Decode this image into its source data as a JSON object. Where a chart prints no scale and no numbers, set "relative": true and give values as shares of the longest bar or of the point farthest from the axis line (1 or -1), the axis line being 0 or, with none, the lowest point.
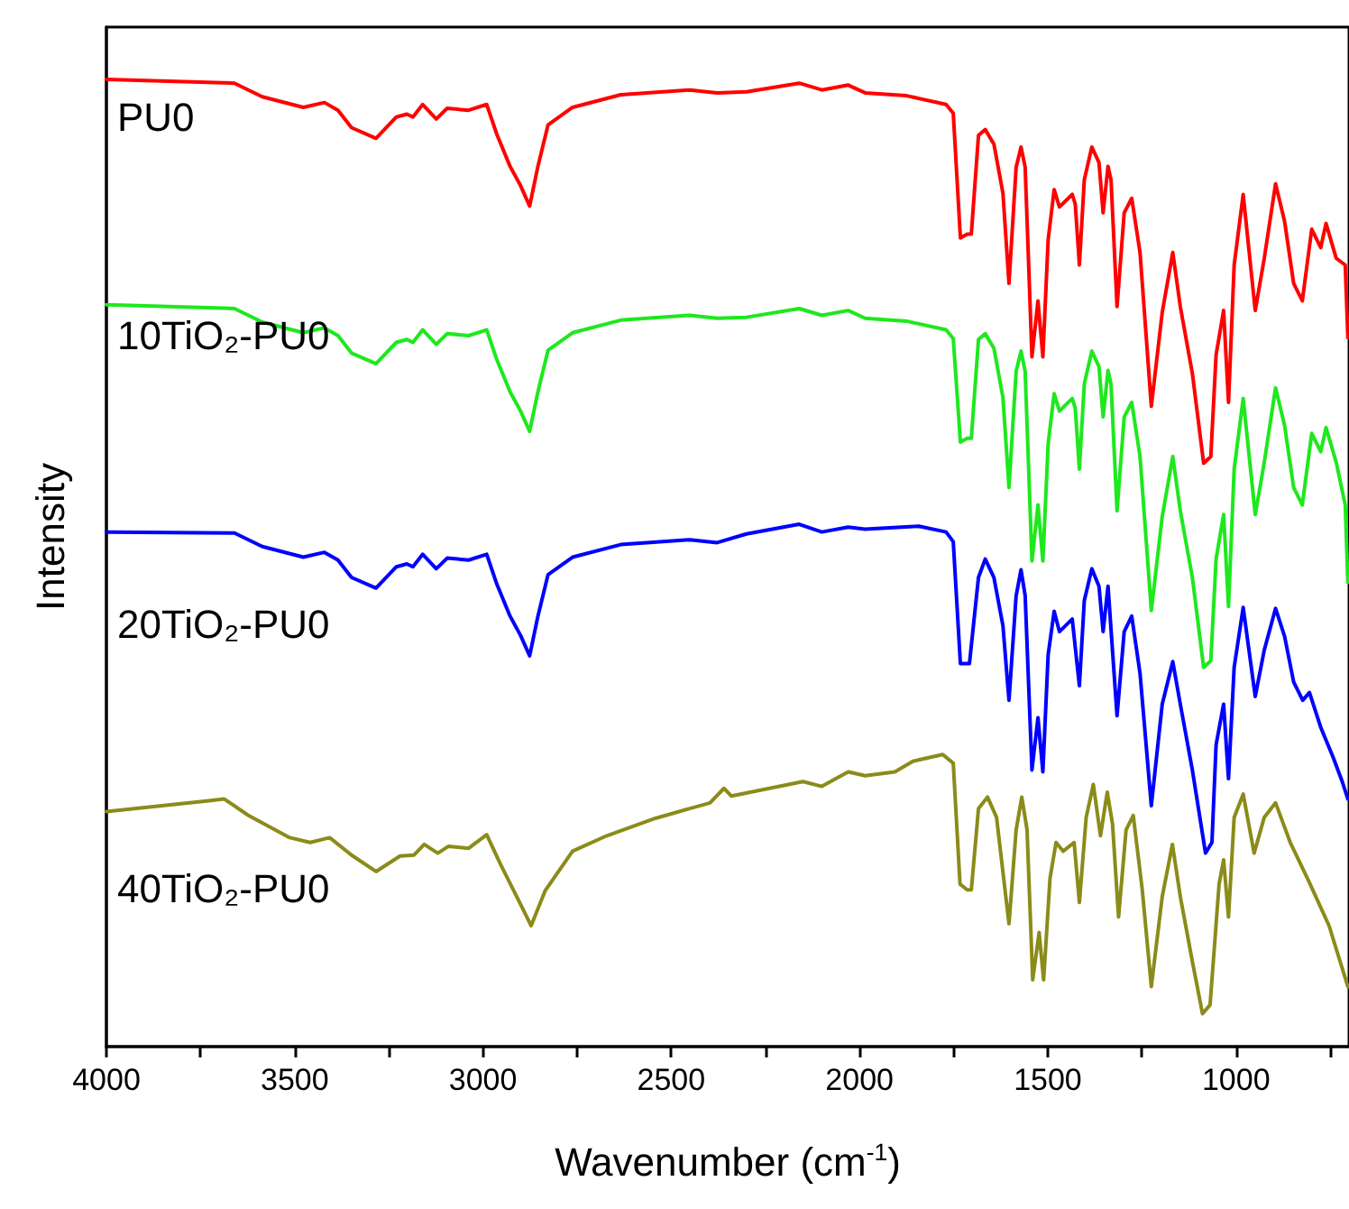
{
  "chart_data": {
    "type": "line",
    "xlabel": "Wavenumber (cm$^{-1}$)",
    "ylabel": "Intensity",
    "relative": true,
    "marker": "none",
    "line_style": "solid",
    "xlim": [
      4000,
      700
    ],
    "xticks": [
      4000,
      {
        "value": 3750,
        "label": null
      },
      3500,
      {
        "value": 3250,
        "label": null
      },
      3000,
      {
        "value": 2750,
        "label": null
      },
      2500,
      {
        "value": 2250,
        "label": null
      },
      2000,
      {
        "value": 1750,
        "label": null
      },
      1500,
      {
        "value": 1250,
        "label": null
      },
      1000,
      {
        "value": 750,
        "label": null
      }
    ],
    "series": [
      {
        "name": "PU0",
        "color": "#ff0000",
        "x": [
          4000,
          3660,
          3586,
          3477,
          3421,
          3385,
          3349,
          3284,
          3230,
          3202,
          3186,
          3160,
          3124,
          3095,
          3038,
          2990,
          2963,
          2928,
          2900,
          2876,
          2854,
          2827,
          2762,
          2634,
          2451,
          2378,
          2300,
          2160,
          2100,
          2030,
          1985,
          1875,
          1770,
          1751,
          1732,
          1714,
          1703,
          1684,
          1666,
          1643,
          1619,
          1603,
          1584,
          1571,
          1560,
          1542,
          1526,
          1513,
          1499,
          1483,
          1469,
          1435,
          1427,
          1416,
          1403,
          1383,
          1364,
          1353,
          1340,
          1332,
          1316,
          1297,
          1277,
          1255,
          1225,
          1196,
          1168,
          1148,
          1116,
          1086,
          1067,
          1053,
          1033,
          1020,
          1005,
          981,
          949,
          925,
          895,
          871,
          847,
          824,
          799,
          775,
          761,
          734,
          710,
          703
        ],
        "values": [
          1.0,
          0.996,
          0.982,
          0.971,
          0.976,
          0.968,
          0.95,
          0.939,
          0.961,
          0.964,
          0.961,
          0.974,
          0.959,
          0.97,
          0.968,
          0.974,
          0.943,
          0.91,
          0.89,
          0.869,
          0.91,
          0.953,
          0.971,
          0.984,
          0.989,
          0.986,
          0.987,
          0.996,
          0.989,
          0.994,
          0.986,
          0.983,
          0.974,
          0.965,
          0.836,
          0.84,
          0.84,
          0.942,
          0.948,
          0.933,
          0.882,
          0.789,
          0.909,
          0.93,
          0.909,
          0.713,
          0.771,
          0.713,
          0.834,
          0.886,
          0.868,
          0.881,
          0.871,
          0.808,
          0.896,
          0.93,
          0.914,
          0.862,
          0.91,
          0.896,
          0.765,
          0.862,
          0.877,
          0.821,
          0.662,
          0.759,
          0.821,
          0.765,
          0.696,
          0.603,
          0.61,
          0.715,
          0.761,
          0.666,
          0.808,
          0.881,
          0.761,
          0.815,
          0.892,
          0.853,
          0.789,
          0.771,
          0.845,
          0.826,
          0.851,
          0.815,
          0.808,
          0.733
        ]
      },
      {
        "name": "10TiO₂-PU0",
        "color": "#1ee81e",
        "x": [
          4000,
          3660,
          3586,
          3477,
          3421,
          3385,
          3349,
          3284,
          3230,
          3202,
          3186,
          3160,
          3124,
          3095,
          3038,
          2990,
          2963,
          2928,
          2900,
          2876,
          2854,
          2827,
          2762,
          2634,
          2451,
          2378,
          2300,
          2160,
          2100,
          2030,
          1985,
          1875,
          1770,
          1751,
          1732,
          1714,
          1703,
          1684,
          1666,
          1643,
          1619,
          1603,
          1584,
          1571,
          1560,
          1542,
          1526,
          1513,
          1499,
          1483,
          1469,
          1435,
          1427,
          1416,
          1403,
          1383,
          1364,
          1353,
          1340,
          1332,
          1316,
          1297,
          1277,
          1255,
          1225,
          1196,
          1168,
          1148,
          1116,
          1086,
          1067,
          1053,
          1033,
          1020,
          1005,
          981,
          949,
          925,
          895,
          871,
          847,
          824,
          799,
          775,
          761,
          734,
          710,
          703
        ],
        "values": [
          0.767,
          0.763,
          0.749,
          0.738,
          0.743,
          0.735,
          0.717,
          0.706,
          0.728,
          0.731,
          0.728,
          0.741,
          0.726,
          0.737,
          0.735,
          0.741,
          0.71,
          0.677,
          0.657,
          0.636,
          0.677,
          0.72,
          0.738,
          0.751,
          0.756,
          0.753,
          0.754,
          0.763,
          0.756,
          0.761,
          0.753,
          0.75,
          0.741,
          0.732,
          0.625,
          0.629,
          0.629,
          0.731,
          0.737,
          0.722,
          0.671,
          0.578,
          0.698,
          0.719,
          0.698,
          0.502,
          0.56,
          0.502,
          0.623,
          0.675,
          0.657,
          0.67,
          0.66,
          0.597,
          0.685,
          0.719,
          0.703,
          0.651,
          0.699,
          0.685,
          0.554,
          0.651,
          0.666,
          0.61,
          0.451,
          0.548,
          0.61,
          0.554,
          0.485,
          0.392,
          0.399,
          0.504,
          0.55,
          0.455,
          0.597,
          0.67,
          0.55,
          0.604,
          0.681,
          0.642,
          0.578,
          0.56,
          0.634,
          0.615,
          0.64,
          0.604,
          0.56,
          0.48
        ]
      },
      {
        "name": "20TiO₂-PU0",
        "color": "#0000ff",
        "x": [
          4000,
          3660,
          3586,
          3477,
          3421,
          3385,
          3349,
          3284,
          3230,
          3202,
          3186,
          3160,
          3124,
          3095,
          3038,
          2990,
          2963,
          2928,
          2900,
          2876,
          2854,
          2827,
          2762,
          2634,
          2451,
          2378,
          2300,
          2160,
          2100,
          2030,
          1985,
          1842,
          1770,
          1751,
          1732,
          1708,
          1684,
          1666,
          1643,
          1619,
          1603,
          1584,
          1571,
          1560,
          1542,
          1526,
          1513,
          1499,
          1483,
          1469,
          1435,
          1416,
          1403,
          1383,
          1364,
          1353,
          1340,
          1316,
          1297,
          1277,
          1255,
          1225,
          1196,
          1168,
          1148,
          1116,
          1081,
          1064,
          1053,
          1033,
          1020,
          1005,
          981,
          949,
          925,
          895,
          871,
          847,
          823,
          805,
          775,
          742,
          718,
          703
        ],
        "values": [
          0.532,
          0.531,
          0.517,
          0.506,
          0.511,
          0.503,
          0.485,
          0.474,
          0.496,
          0.499,
          0.496,
          0.509,
          0.494,
          0.505,
          0.503,
          0.509,
          0.478,
          0.445,
          0.425,
          0.404,
          0.445,
          0.488,
          0.506,
          0.519,
          0.524,
          0.521,
          0.53,
          0.54,
          0.532,
          0.537,
          0.535,
          0.538,
          0.532,
          0.522,
          0.396,
          0.396,
          0.485,
          0.504,
          0.485,
          0.435,
          0.358,
          0.466,
          0.493,
          0.466,
          0.286,
          0.34,
          0.284,
          0.405,
          0.45,
          0.429,
          0.442,
          0.373,
          0.461,
          0.494,
          0.476,
          0.429,
          0.476,
          0.342,
          0.429,
          0.445,
          0.386,
          0.249,
          0.354,
          0.398,
          0.354,
          0.286,
          0.2,
          0.211,
          0.312,
          0.354,
          0.277,
          0.392,
          0.454,
          0.362,
          0.41,
          0.453,
          0.424,
          0.377,
          0.358,
          0.366,
          0.33,
          0.299,
          0.274,
          0.256
        ]
      },
      {
        "name": "40TiO₂-PU0",
        "color": "#8b8b1a",
        "x": [
          4000,
          3733,
          3687,
          3623,
          3513,
          3459,
          3407,
          3349,
          3284,
          3220,
          3183,
          3156,
          3120,
          3092,
          3038,
          2990,
          2954,
          2909,
          2872,
          2835,
          2762,
          2671,
          2542,
          2397,
          2360,
          2340,
          2150,
          2100,
          2030,
          1985,
          1906,
          1858,
          1779,
          1751,
          1733,
          1714,
          1703,
          1684,
          1660,
          1636,
          1603,
          1584,
          1569,
          1555,
          1540,
          1523,
          1511,
          1494,
          1478,
          1459,
          1430,
          1416,
          1398,
          1379,
          1360,
          1342,
          1328,
          1312,
          1292,
          1273,
          1249,
          1225,
          1196,
          1169,
          1148,
          1116,
          1089,
          1069,
          1045,
          1033,
          1020,
          1005,
          981,
          952,
          925,
          895,
          856,
          808,
          753,
          703
        ],
        "values": [
          0.243,
          0.254,
          0.256,
          0.239,
          0.216,
          0.211,
          0.216,
          0.198,
          0.181,
          0.197,
          0.198,
          0.209,
          0.2,
          0.207,
          0.205,
          0.219,
          0.189,
          0.154,
          0.125,
          0.161,
          0.202,
          0.218,
          0.236,
          0.252,
          0.267,
          0.259,
          0.274,
          0.269,
          0.284,
          0.28,
          0.284,
          0.295,
          0.302,
          0.293,
          0.168,
          0.162,
          0.162,
          0.246,
          0.258,
          0.237,
          0.127,
          0.224,
          0.258,
          0.224,
          0.069,
          0.118,
          0.069,
          0.174,
          0.211,
          0.202,
          0.211,
          0.149,
          0.237,
          0.271,
          0.218,
          0.263,
          0.23,
          0.134,
          0.224,
          0.239,
          0.162,
          0.062,
          0.155,
          0.209,
          0.155,
          0.088,
          0.034,
          0.043,
          0.168,
          0.193,
          0.134,
          0.237,
          0.261,
          0.2,
          0.237,
          0.252,
          0.211,
          0.172,
          0.125,
          0.062
        ]
      }
    ]
  }
}
